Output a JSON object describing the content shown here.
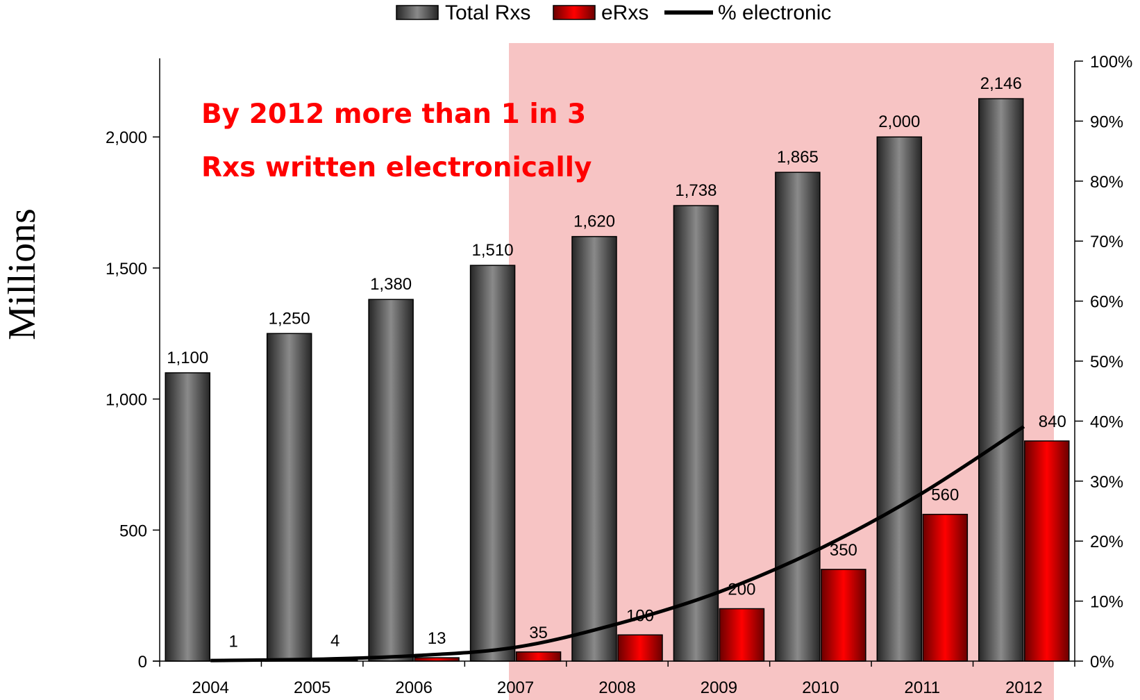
{
  "chart_data": {
    "type": "bar",
    "categories": [
      "2004",
      "2005",
      "2006",
      "2007",
      "2008",
      "2009",
      "2010",
      "2011",
      "2012"
    ],
    "series": [
      {
        "name": "Total Rxs",
        "type": "bar",
        "axis": "left",
        "color": "#4a4a4a",
        "values": [
          1100,
          1250,
          1380,
          1510,
          1620,
          1738,
          1865,
          2000,
          2146
        ],
        "labels": [
          "1,100",
          "1,250",
          "1,380",
          "1,510",
          "1,620",
          "1,738",
          "1,865",
          "2,000",
          "2,146"
        ]
      },
      {
        "name": "eRxs",
        "type": "bar",
        "axis": "left",
        "color": "#ff0000",
        "values": [
          1,
          4,
          13,
          35,
          100,
          200,
          350,
          560,
          840
        ],
        "labels": [
          "1",
          "4",
          "13",
          "35",
          "100",
          "200",
          "350",
          "560",
          "840"
        ]
      },
      {
        "name": "% electronic",
        "type": "line",
        "axis": "right",
        "color": "#000000",
        "values": [
          0.1,
          0.3,
          0.9,
          2.3,
          6.2,
          11.5,
          18.8,
          28.0,
          39.1
        ]
      }
    ],
    "ylabel": "Millions",
    "ylim": [
      0,
      2300
    ],
    "y_ticks": [
      0,
      500,
      1000,
      1500,
      2000
    ],
    "y_tick_labels": [
      "0",
      "500",
      "1,000",
      "1,500",
      "2,000"
    ],
    "y2lim": [
      0,
      100
    ],
    "y2_ticks": [
      0,
      10,
      20,
      30,
      40,
      50,
      60,
      70,
      80,
      90,
      100
    ],
    "y2_tick_labels": [
      "0%",
      "10%",
      "20%",
      "30%",
      "40%",
      "50%",
      "60%",
      "70%",
      "80%",
      "90%",
      "100%"
    ],
    "highlight_region": {
      "from_category": "2007",
      "to_category": "2012",
      "color": "#f7c4c4"
    },
    "annotation": [
      "By 2012 more than 1 in 3",
      "Rxs written electronically"
    ],
    "annotation_color": "#ff0000",
    "legend": {
      "position": "top-center",
      "entries": [
        "Total Rxs",
        "eRxs",
        "% electronic"
      ]
    },
    "grid": false
  }
}
